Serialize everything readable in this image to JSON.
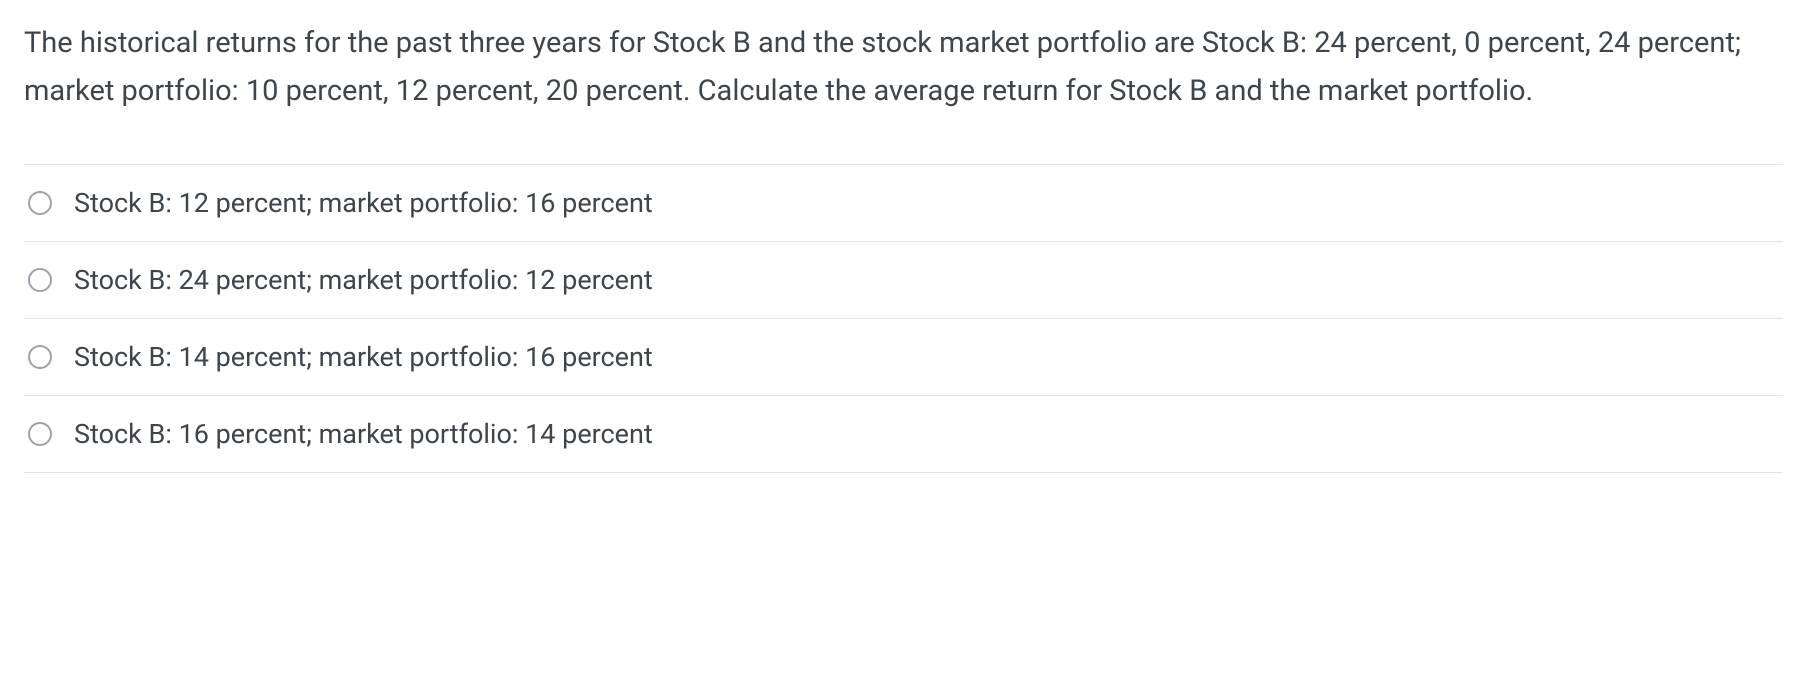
{
  "question": {
    "text": "The historical returns for the past three years for Stock B and the stock market portfolio are Stock B: 24 percent, 0 percent, 24 percent; market portfolio: 10 percent, 12 percent, 20 percent. Calculate the average return for Stock B and the market portfolio."
  },
  "options": [
    {
      "label": "Stock B: 12 percent; market portfolio: 16 percent"
    },
    {
      "label": "Stock B: 24 percent; market portfolio: 12 percent"
    },
    {
      "label": "Stock B: 14 percent; market portfolio: 16 percent"
    },
    {
      "label": "Stock B: 16 percent; market portfolio: 14 percent"
    }
  ],
  "colors": {
    "text": "#3d454d",
    "border": "#e0e3e6",
    "radio_border": "#9ba3ab",
    "background": "#ffffff"
  },
  "typography": {
    "question_fontsize": 29,
    "option_fontsize": 27,
    "line_height": 1.65
  }
}
